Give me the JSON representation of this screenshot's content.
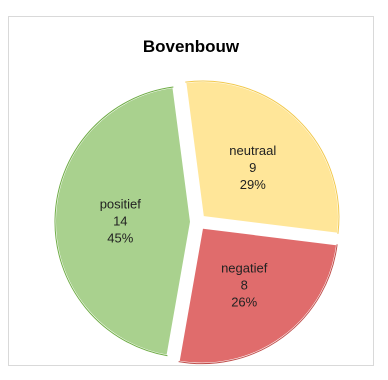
{
  "chart_data": {
    "type": "pie",
    "title": "Bovenbouw",
    "slices": [
      {
        "label": "neutraal",
        "value": 9,
        "percent": "29%",
        "color": "#FFE699",
        "stroke": "#F2C94C"
      },
      {
        "label": "negatief",
        "value": 8,
        "percent": "26%",
        "color": "#E06C6C",
        "stroke": "#C0504D"
      },
      {
        "label": "positief",
        "value": 14,
        "percent": "45%",
        "color": "#A9D18E",
        "stroke": "#70AD47"
      }
    ],
    "legend": "none",
    "exploded": true
  }
}
